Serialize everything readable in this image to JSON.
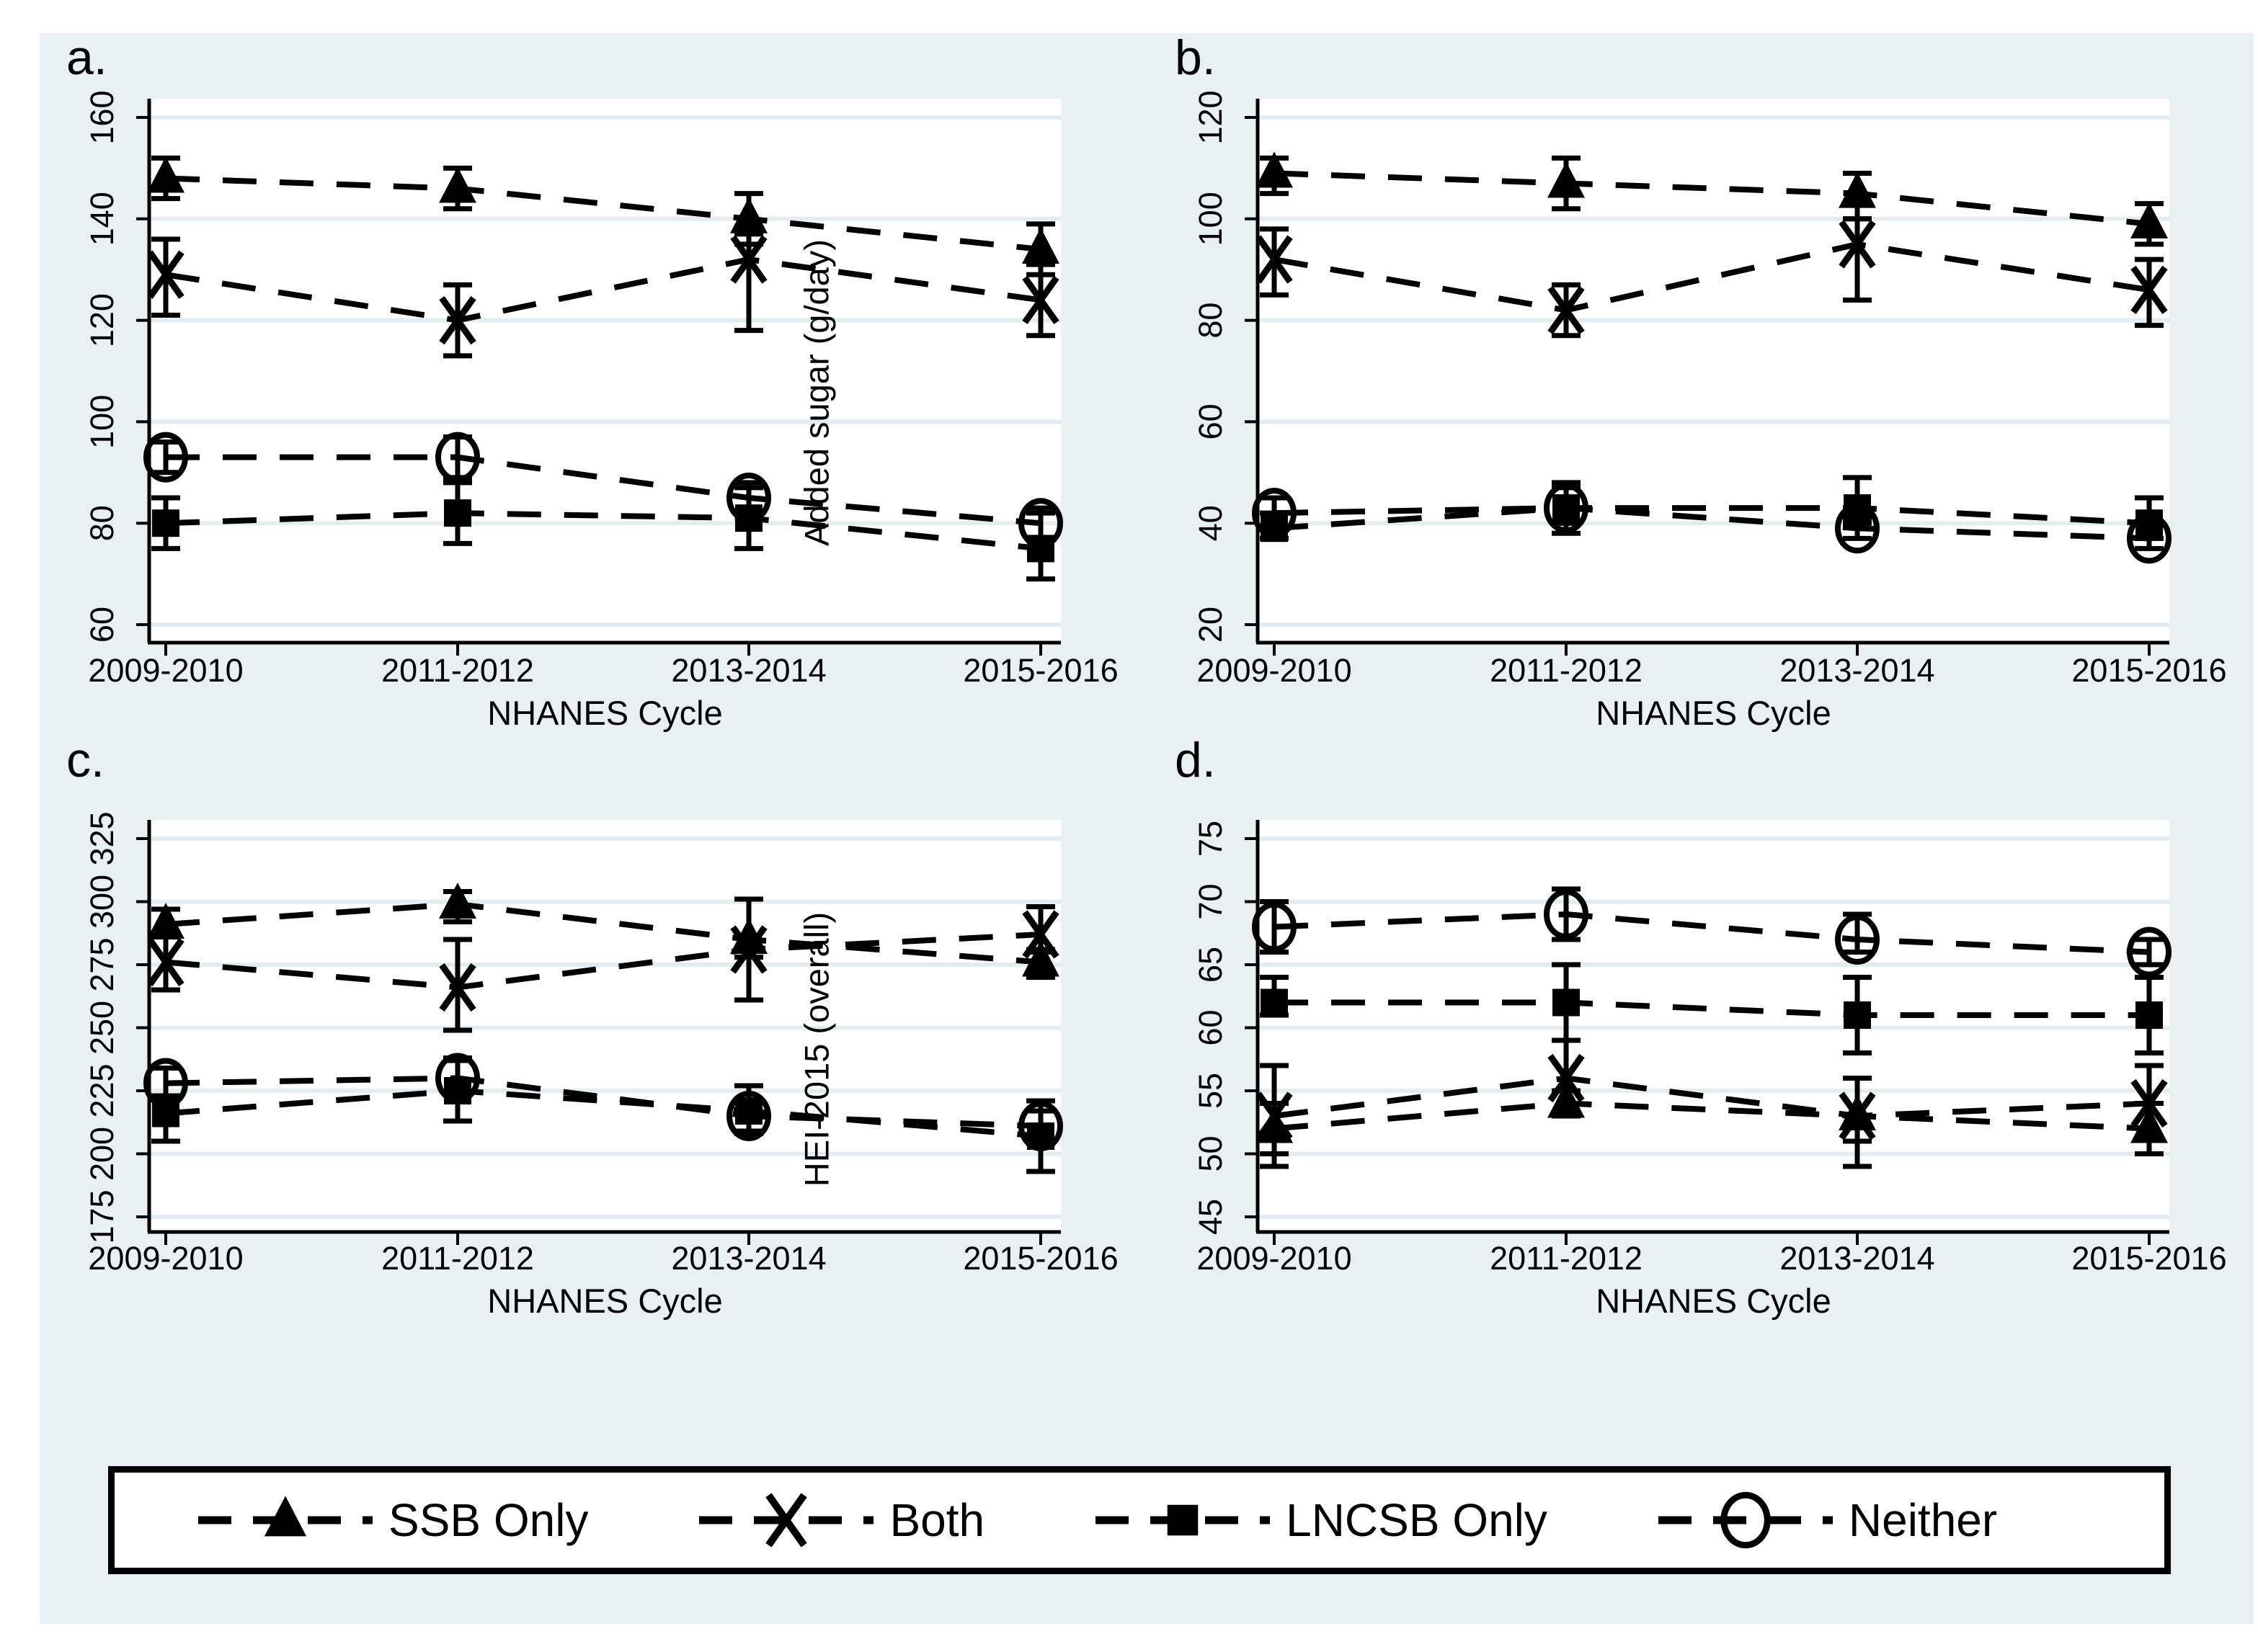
{
  "figure": {
    "background_color": "#e9f0f2",
    "plot_background": "#ffffff",
    "grid_color": "#e3edf0",
    "axis_color": "#000000",
    "series_color": "#000000",
    "xlabel": "NHANES Cycle",
    "categories": [
      "2009-2010",
      "2011-2012",
      "2013-2014",
      "2015-2016"
    ]
  },
  "legend": {
    "entries": [
      {
        "label": "SSB Only",
        "marker": "triangle"
      },
      {
        "label": "Both",
        "marker": "x"
      },
      {
        "label": "LNCSB Only",
        "marker": "square"
      },
      {
        "label": "Neither",
        "marker": "circle"
      }
    ]
  },
  "chart_data": [
    {
      "id": "a",
      "panel_label": "a.",
      "type": "line",
      "xlabel": "NHANES Cycle",
      "ylabel": "Added sugar (g/day)",
      "ylabel_in_plot": true,
      "ylim": [
        60,
        160
      ],
      "yticks": [
        60,
        80,
        100,
        120,
        140,
        160
      ],
      "categories": [
        "2009-2010",
        "2011-2012",
        "2013-2014",
        "2015-2016"
      ],
      "grid": true,
      "legend_position": "bottom-shared",
      "series": [
        {
          "name": "SSB Only",
          "marker": "triangle",
          "values": [
            148,
            146,
            140,
            134
          ],
          "ci_low": [
            144,
            142,
            135,
            129
          ],
          "ci_high": [
            152,
            150,
            145,
            139
          ]
        },
        {
          "name": "Both",
          "marker": "x",
          "values": [
            129,
            120,
            132,
            124
          ],
          "ci_low": [
            121,
            113,
            118,
            117
          ],
          "ci_high": [
            136,
            127,
            137,
            131
          ]
        },
        {
          "name": "LNCSB Only",
          "marker": "square",
          "values": [
            80,
            82,
            81,
            75
          ],
          "ci_low": [
            75,
            76,
            75,
            69
          ],
          "ci_high": [
            85,
            88,
            87,
            82
          ]
        },
        {
          "name": "Neither",
          "marker": "circle",
          "values": [
            93,
            93,
            85,
            80
          ],
          "ci_low": [
            90,
            89,
            82,
            77
          ],
          "ci_high": [
            96,
            97,
            88,
            83
          ]
        }
      ]
    },
    {
      "id": "b",
      "panel_label": "b.",
      "type": "line",
      "xlabel": "NHANES Cycle",
      "ylabel": "",
      "ylabel_in_plot": false,
      "ylim": [
        20,
        120
      ],
      "yticks": [
        20,
        40,
        60,
        80,
        100,
        120
      ],
      "categories": [
        "2009-2010",
        "2011-2012",
        "2013-2014",
        "2015-2016"
      ],
      "grid": true,
      "legend_position": "bottom-shared",
      "series": [
        {
          "name": "SSB Only",
          "marker": "triangle",
          "values": [
            109,
            107,
            105,
            99
          ],
          "ci_low": [
            105,
            102,
            100,
            95
          ],
          "ci_high": [
            112,
            112,
            109,
            103
          ]
        },
        {
          "name": "Both",
          "marker": "x",
          "values": [
            92,
            82,
            95,
            86
          ],
          "ci_low": [
            85,
            77,
            84,
            79
          ],
          "ci_high": [
            98,
            87,
            100,
            92
          ]
        },
        {
          "name": "LNCSB Only",
          "marker": "square",
          "values": [
            39,
            43,
            43,
            40
          ],
          "ci_low": [
            37,
            38,
            40,
            37
          ],
          "ci_high": [
            42,
            48,
            49,
            45
          ]
        },
        {
          "name": "Neither",
          "marker": "circle",
          "values": [
            42,
            43,
            39,
            37
          ],
          "ci_low": [
            39,
            40,
            37,
            35
          ],
          "ci_high": [
            45,
            47,
            41,
            40
          ]
        }
      ]
    },
    {
      "id": "c",
      "panel_label": "c.",
      "type": "line",
      "xlabel": "NHANES Cycle",
      "ylabel": "HEI-2015 (overall)",
      "ylabel_in_plot": true,
      "ylim": [
        175,
        325
      ],
      "yticks": [
        175,
        200,
        225,
        250,
        275,
        300,
        325
      ],
      "categories": [
        "2009-2010",
        "2011-2012",
        "2013-2014",
        "2015-2016"
      ],
      "grid": true,
      "legend_position": "bottom-shared",
      "series": [
        {
          "name": "SSB Only",
          "marker": "triangle",
          "values": [
            291,
            299,
            285,
            276
          ],
          "ci_low": [
            286,
            292,
            278,
            270
          ],
          "ci_high": [
            297,
            304,
            301,
            281
          ]
        },
        {
          "name": "Both",
          "marker": "x",
          "values": [
            276,
            266,
            281,
            287
          ],
          "ci_low": [
            265,
            249,
            261,
            280
          ],
          "ci_high": [
            286,
            285,
            301,
            298
          ]
        },
        {
          "name": "LNCSB Only",
          "marker": "square",
          "values": [
            216,
            225,
            217,
            207
          ],
          "ci_low": [
            205,
            213,
            208,
            193
          ],
          "ci_high": [
            223,
            237,
            227,
            217
          ]
        },
        {
          "name": "Neither",
          "marker": "circle",
          "values": [
            228,
            230,
            215,
            211
          ],
          "ci_low": [
            222,
            224,
            209,
            204
          ],
          "ci_high": [
            234,
            238,
            221,
            221
          ]
        }
      ]
    },
    {
      "id": "d",
      "panel_label": "d.",
      "type": "line",
      "xlabel": "NHANES Cycle",
      "ylabel": "",
      "ylabel_in_plot": false,
      "ylim": [
        45,
        75
      ],
      "yticks": [
        45,
        50,
        55,
        60,
        65,
        70,
        75
      ],
      "categories": [
        "2009-2010",
        "2011-2012",
        "2013-2014",
        "2015-2016"
      ],
      "grid": true,
      "legend_position": "bottom-shared",
      "series": [
        {
          "name": "SSB Only",
          "marker": "triangle",
          "values": [
            52,
            54,
            53,
            52
          ],
          "ci_low": [
            50,
            53,
            49,
            50
          ],
          "ci_high": [
            54,
            55,
            56,
            54
          ]
        },
        {
          "name": "Both",
          "marker": "x",
          "values": [
            53,
            56,
            53,
            54
          ],
          "ci_low": [
            49,
            53,
            51,
            50
          ],
          "ci_high": [
            57,
            59,
            56,
            57
          ]
        },
        {
          "name": "LNCSB Only",
          "marker": "square",
          "values": [
            62,
            62,
            61,
            61
          ],
          "ci_low": [
            61,
            59,
            58,
            58
          ],
          "ci_high": [
            64,
            65,
            64,
            64
          ]
        },
        {
          "name": "Neither",
          "marker": "circle",
          "values": [
            68,
            69,
            67,
            66
          ],
          "ci_low": [
            66,
            67,
            66,
            65
          ],
          "ci_high": [
            70,
            71,
            69,
            67
          ]
        }
      ]
    }
  ]
}
